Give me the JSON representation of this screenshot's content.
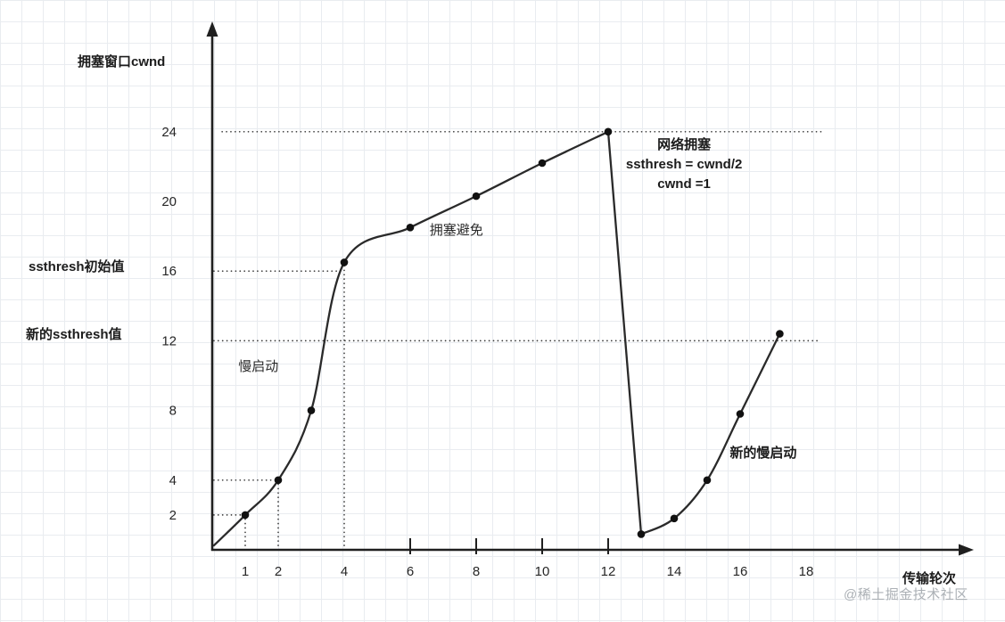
{
  "labels": {
    "y_axis_title": "拥塞窗口cwnd",
    "x_axis_title": "传输轮次",
    "ssthresh_initial": "ssthresh初始值",
    "ssthresh_new": "新的ssthresh值"
  },
  "watermark": {
    "text": "@稀土掘金技术社区"
  },
  "colors": {
    "axis": "#1f1f1f",
    "curve": "#2a2a2a",
    "dot": "#111111",
    "guide": "#3a3a3a",
    "grid": "#e9ecf0",
    "tick_label": "#262626",
    "watermark": "#abb0b5"
  },
  "chart_data": {
    "type": "line",
    "xlabel": "传输轮次",
    "ylabel": "拥塞窗口cwnd",
    "xlim": [
      0,
      19.5
    ],
    "ylim": [
      0,
      27
    ],
    "grid": true,
    "x_ticks": [
      1,
      2,
      4,
      6,
      8,
      10,
      12,
      14,
      16,
      18
    ],
    "x_ticks_with_marks": [
      6,
      8,
      10,
      12
    ],
    "y_ticks": [
      2,
      4,
      8,
      12,
      16,
      20,
      24
    ],
    "series": [
      {
        "name": "slow-start-then-congestion-avoidance",
        "x": [
          0.05,
          1,
          2,
          3,
          4,
          6,
          8,
          10,
          12
        ],
        "y": [
          0.25,
          2,
          4,
          8,
          16.5,
          18.5,
          20.3,
          22.2,
          24
        ]
      },
      {
        "name": "multiplicative-decrease-drop",
        "x": [
          12,
          13
        ],
        "y": [
          24,
          0.9
        ]
      },
      {
        "name": "new-slow-start",
        "x": [
          13,
          14,
          15,
          16,
          17.2
        ],
        "y": [
          0.9,
          1.8,
          4,
          7.8,
          12.4
        ]
      }
    ],
    "points": [
      [
        1,
        2
      ],
      [
        2,
        4
      ],
      [
        3,
        8
      ],
      [
        4,
        16.5
      ],
      [
        6,
        18.5
      ],
      [
        8,
        20.3
      ],
      [
        10,
        22.2
      ],
      [
        12,
        24
      ],
      [
        13,
        0.9
      ],
      [
        14,
        1.8
      ],
      [
        15,
        4
      ],
      [
        16,
        7.8
      ],
      [
        17.2,
        12.4
      ]
    ],
    "guides": [
      {
        "type": "h",
        "y": 24,
        "x1": 0.3,
        "x2": 18.45
      },
      {
        "type": "h",
        "y": 16,
        "x1": 0.05,
        "x2": 3.87
      },
      {
        "type": "h",
        "y": 12,
        "x1": 0.05,
        "x2": 18.45
      },
      {
        "type": "h",
        "y": 4,
        "x1": 0.05,
        "x2": 2.05
      },
      {
        "type": "h",
        "y": 2,
        "x1": 0.05,
        "x2": 1.05
      },
      {
        "type": "v",
        "x": 1,
        "y1": 0,
        "y2": 2
      },
      {
        "type": "v",
        "x": 2,
        "y1": 0,
        "y2": 4
      },
      {
        "type": "v",
        "x": 4,
        "y1": 0,
        "y2": 16.3
      }
    ],
    "annotations": [
      {
        "name": "slow-start-label",
        "lines": [
          "慢启动"
        ],
        "x": 1.4,
        "y": 10.5,
        "bold": false
      },
      {
        "name": "congestion-avoidance-label",
        "lines": [
          "拥塞避免"
        ],
        "x": 7.4,
        "y": 18.3,
        "bold": false
      },
      {
        "name": "network-congestion-label",
        "lines": [
          "网络拥塞",
          "ssthresh = cwnd/2",
          "cwnd =1"
        ],
        "x": 14.3,
        "y": 23.2,
        "bold": true
      },
      {
        "name": "new-slow-start-label",
        "lines": [
          "新的慢启动"
        ],
        "x": 16.7,
        "y": 5.5,
        "bold": true
      }
    ]
  }
}
